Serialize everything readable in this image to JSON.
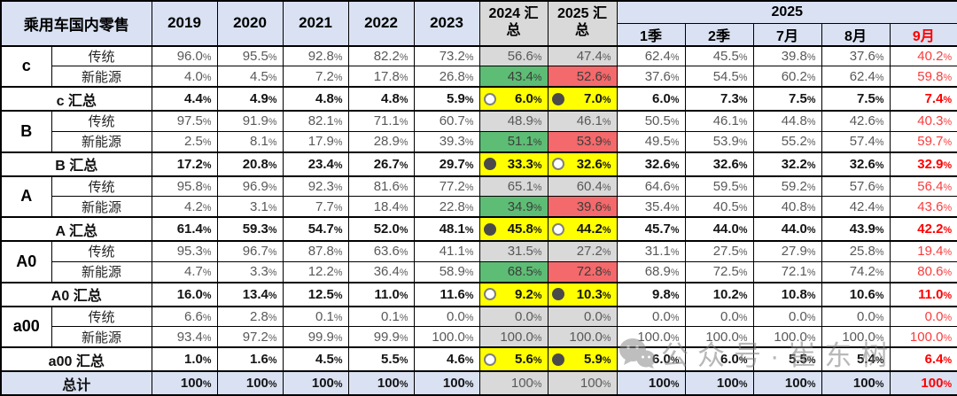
{
  "chart_data": {
    "type": "table",
    "title": "乘用车国内零售",
    "columns": [
      "2019",
      "2020",
      "2021",
      "2022",
      "2023",
      "2024 汇总",
      "2025 汇总",
      "1季",
      "2季",
      "7月",
      "8月",
      "9月"
    ],
    "column_group_label": "2025",
    "column_group_spans": [
      "1季",
      "2季",
      "7月",
      "8月",
      "9月"
    ],
    "rows": [
      {
        "kind": "fuel",
        "segment": "c",
        "label": "传统",
        "scale": false,
        "values": [
          "96.0%",
          "95.5%",
          "92.8%",
          "82.2%",
          "73.2%",
          "56.6%",
          "47.4%",
          "62.4%",
          "45.5%",
          "39.8%",
          "37.6%",
          "40.2%"
        ]
      },
      {
        "kind": "fuel",
        "segment": "c",
        "label": "新能源",
        "scale": true,
        "values": [
          "4.0%",
          "4.5%",
          "7.2%",
          "17.8%",
          "26.8%",
          "43.4%",
          "52.6%",
          "37.6%",
          "54.5%",
          "60.2%",
          "62.4%",
          "59.8%"
        ]
      },
      {
        "kind": "summary",
        "label": "c 汇总",
        "icon_2024": "open",
        "icon_2025": "filled",
        "values": [
          "4.4%",
          "4.9%",
          "4.8%",
          "4.8%",
          "5.9%",
          "6.0%",
          "7.0%",
          "6.0%",
          "7.3%",
          "7.5%",
          "7.5%",
          "7.4%"
        ]
      },
      {
        "kind": "fuel",
        "segment": "B",
        "label": "传统",
        "scale": false,
        "values": [
          "97.5%",
          "91.9%",
          "82.1%",
          "71.1%",
          "60.7%",
          "48.9%",
          "46.1%",
          "50.5%",
          "46.1%",
          "44.8%",
          "42.6%",
          "40.3%"
        ]
      },
      {
        "kind": "fuel",
        "segment": "B",
        "label": "新能源",
        "scale": true,
        "values": [
          "2.5%",
          "8.1%",
          "17.9%",
          "28.9%",
          "39.3%",
          "51.1%",
          "53.9%",
          "49.5%",
          "53.9%",
          "55.2%",
          "57.4%",
          "59.7%"
        ]
      },
      {
        "kind": "summary",
        "label": "B 汇总",
        "icon_2024": "filled",
        "icon_2025": "open",
        "values": [
          "17.2%",
          "20.8%",
          "23.4%",
          "26.7%",
          "29.7%",
          "33.3%",
          "32.6%",
          "32.6%",
          "32.6%",
          "32.2%",
          "32.6%",
          "32.9%"
        ]
      },
      {
        "kind": "fuel",
        "segment": "A",
        "label": "传统",
        "scale": false,
        "values": [
          "95.8%",
          "96.9%",
          "92.3%",
          "81.6%",
          "77.2%",
          "65.1%",
          "60.4%",
          "64.6%",
          "59.5%",
          "59.2%",
          "57.6%",
          "56.4%"
        ]
      },
      {
        "kind": "fuel",
        "segment": "A",
        "label": "新能源",
        "scale": true,
        "values": [
          "4.2%",
          "3.1%",
          "7.7%",
          "18.4%",
          "22.8%",
          "34.9%",
          "39.6%",
          "35.4%",
          "40.5%",
          "40.8%",
          "42.4%",
          "43.6%"
        ]
      },
      {
        "kind": "summary",
        "label": "A 汇总",
        "icon_2024": "filled",
        "icon_2025": "open",
        "values": [
          "61.4%",
          "59.3%",
          "54.7%",
          "52.0%",
          "48.1%",
          "45.8%",
          "44.2%",
          "45.7%",
          "44.0%",
          "44.0%",
          "43.9%",
          "42.2%"
        ]
      },
      {
        "kind": "fuel",
        "segment": "A0",
        "label": "传统",
        "scale": false,
        "values": [
          "95.3%",
          "96.7%",
          "87.8%",
          "63.6%",
          "41.1%",
          "31.5%",
          "27.2%",
          "31.1%",
          "27.5%",
          "27.9%",
          "25.8%",
          "19.4%"
        ]
      },
      {
        "kind": "fuel",
        "segment": "A0",
        "label": "新能源",
        "scale": true,
        "values": [
          "4.7%",
          "3.3%",
          "12.2%",
          "36.4%",
          "58.9%",
          "68.5%",
          "72.8%",
          "68.9%",
          "72.5%",
          "72.1%",
          "74.2%",
          "80.6%"
        ]
      },
      {
        "kind": "summary",
        "label": "A0 汇总",
        "icon_2024": "open",
        "icon_2025": "filled",
        "values": [
          "16.0%",
          "13.4%",
          "12.5%",
          "11.0%",
          "11.6%",
          "9.2%",
          "10.3%",
          "9.8%",
          "10.2%",
          "10.8%",
          "10.6%",
          "11.0%"
        ]
      },
      {
        "kind": "fuel",
        "segment": "a00",
        "label": "传统",
        "scale": false,
        "values": [
          "6.6%",
          "2.8%",
          "0.1%",
          "0.1%",
          "0.0%",
          "0.0%",
          "0.0%",
          "0.0%",
          "0.0%",
          "0.0%",
          "0.0%",
          "0.0%"
        ]
      },
      {
        "kind": "fuel",
        "segment": "a00",
        "label": "新能源",
        "scale": false,
        "values": [
          "93.4%",
          "97.2%",
          "99.9%",
          "99.9%",
          "100.0%",
          "100.0%",
          "100.0%",
          "100.0%",
          "100.0%",
          "100.0%",
          "100.0%",
          "100.0%"
        ]
      },
      {
        "kind": "summary",
        "label": "a00 汇总",
        "icon_2024": "open",
        "icon_2025": "filled",
        "values": [
          "1.0%",
          "1.6%",
          "4.5%",
          "5.5%",
          "4.6%",
          "5.6%",
          "5.9%",
          "6.0%",
          "6.0%",
          "5.5%",
          "5.4%",
          "6.4%"
        ]
      },
      {
        "kind": "total",
        "label": "总计",
        "values": [
          "100%",
          "100%",
          "100%",
          "100%",
          "100%",
          "100%",
          "100%",
          "100%",
          "100%",
          "100%",
          "100%",
          "100%"
        ]
      }
    ]
  },
  "watermark": {
    "icon": "wechat-icon",
    "text": "公众号·崔东树"
  },
  "colors": {
    "header_blue": "#d9e1f2",
    "summary_gray": "#d9d9d9",
    "scale_green": "#5dbd74",
    "scale_red": "#f4696b",
    "highlight_yellow": "#ffff00",
    "alert_red_text": "#ff0000",
    "value_gray_text": "#595959"
  }
}
